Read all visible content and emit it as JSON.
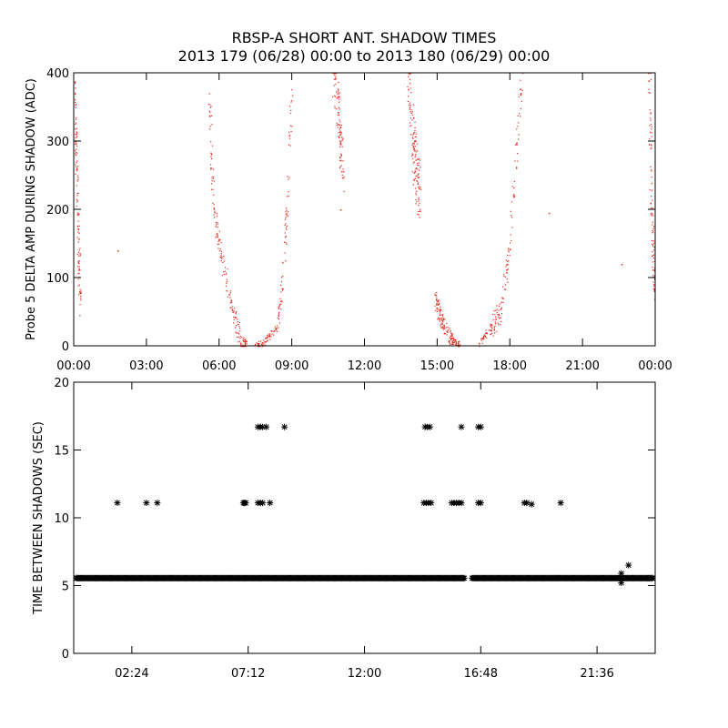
{
  "title_line1": "RBSP-A SHORT ANT. SHADOW TIMES",
  "title_line2": "2013 179 (06/28) 00:00 to 2013 180 (06/29) 00:00",
  "colors": {
    "scatter_red": "#e8281c",
    "axis": "#000000",
    "background": "#ffffff"
  },
  "chart_data": [
    {
      "type": "scatter",
      "ylabel": "Probe 5 DELTA AMP DURING SHADOW (ADC)",
      "xlabel": "",
      "xlim": [
        0,
        24
      ],
      "ylim": [
        0,
        400
      ],
      "x_ticks": [
        0,
        3,
        6,
        9,
        12,
        15,
        18,
        21,
        24
      ],
      "x_tick_labels": [
        "00:00",
        "03:00",
        "06:00",
        "09:00",
        "12:00",
        "15:00",
        "18:00",
        "21:00",
        "00:00"
      ],
      "y_ticks": [
        0,
        100,
        200,
        300,
        400
      ],
      "y_tick_labels": [
        "0",
        "100",
        "200",
        "300",
        "400"
      ],
      "grid": false,
      "marker": "dot",
      "color": "#e8281c",
      "segments": [
        {
          "x": [
            0.0,
            0.05,
            0.1,
            0.15,
            0.2,
            0.25
          ],
          "y": [
            400,
            320,
            270,
            200,
            130,
            60
          ],
          "spread": 25,
          "density": 120
        },
        {
          "x": [
            5.6,
            5.7,
            5.8,
            6.0,
            6.2,
            6.4,
            6.6,
            6.8,
            7.0,
            7.1
          ],
          "y": [
            370,
            250,
            190,
            150,
            110,
            75,
            45,
            20,
            5,
            2
          ],
          "spread": 15,
          "density": 180
        },
        {
          "x": [
            7.5,
            7.8,
            8.1,
            8.4,
            8.6,
            8.8,
            9.0
          ],
          "y": [
            1,
            5,
            15,
            30,
            100,
            200,
            400
          ],
          "spread": 12,
          "density": 140
        },
        {
          "x": [
            10.7,
            10.9,
            11.0,
            11.1
          ],
          "y": [
            400,
            350,
            300,
            250
          ],
          "spread": 35,
          "density": 100
        },
        {
          "x": [
            13.8,
            14.0,
            14.1,
            14.3
          ],
          "y": [
            400,
            300,
            260,
            220
          ],
          "spread": 45,
          "density": 140
        },
        {
          "x": [
            14.9,
            15.1,
            15.3,
            15.6,
            15.9
          ],
          "y": [
            70,
            45,
            25,
            8,
            2
          ],
          "spread": 12,
          "density": 150
        },
        {
          "x": [
            16.7,
            17.0,
            17.3,
            17.6,
            17.9,
            18.2,
            18.5
          ],
          "y": [
            3,
            15,
            30,
            50,
            120,
            250,
            400
          ],
          "spread": 18,
          "density": 160
        },
        {
          "x": [
            23.75,
            23.8,
            23.9,
            24.0
          ],
          "y": [
            400,
            250,
            130,
            80
          ],
          "spread": 20,
          "density": 90
        }
      ],
      "stray_points": [
        {
          "x": 1.8,
          "y": 140
        },
        {
          "x": 11.0,
          "y": 200
        },
        {
          "x": 19.6,
          "y": 195
        },
        {
          "x": 22.6,
          "y": 120
        }
      ]
    },
    {
      "type": "scatter",
      "ylabel": "TIME BETWEEN SHADOWS (SEC)",
      "xlabel": "",
      "xlim": [
        0,
        24
      ],
      "ylim": [
        0,
        20
      ],
      "x_ticks": [
        2.4,
        7.2,
        12.0,
        16.8,
        21.6
      ],
      "x_tick_labels": [
        "02:24",
        "07:12",
        "12:00",
        "16:48",
        "21:36"
      ],
      "y_ticks": [
        0,
        5,
        10,
        15,
        20
      ],
      "y_tick_labels": [
        "0",
        "5",
        "10",
        "15",
        "20"
      ],
      "grid": false,
      "marker": "asterisk",
      "color": "#000000",
      "baseline": {
        "value": 5.55,
        "x_start": 0.0,
        "x_end": 24.0,
        "gaps": [
          [
            16.15,
            16.4
          ]
        ]
      },
      "points": [
        {
          "x": 1.8,
          "y": 11.1
        },
        {
          "x": 3.0,
          "y": 11.1
        },
        {
          "x": 3.45,
          "y": 11.1
        },
        {
          "x": 7.0,
          "y": 11.1
        },
        {
          "x": 7.05,
          "y": 11.1
        },
        {
          "x": 7.1,
          "y": 11.1
        },
        {
          "x": 7.6,
          "y": 11.1
        },
        {
          "x": 7.7,
          "y": 11.1
        },
        {
          "x": 7.8,
          "y": 11.1
        },
        {
          "x": 8.1,
          "y": 11.1
        },
        {
          "x": 7.6,
          "y": 16.7
        },
        {
          "x": 7.7,
          "y": 16.7
        },
        {
          "x": 7.8,
          "y": 16.7
        },
        {
          "x": 7.95,
          "y": 16.7
        },
        {
          "x": 8.7,
          "y": 16.7
        },
        {
          "x": 14.45,
          "y": 11.1
        },
        {
          "x": 14.55,
          "y": 11.1
        },
        {
          "x": 14.65,
          "y": 11.1
        },
        {
          "x": 14.75,
          "y": 11.1
        },
        {
          "x": 15.6,
          "y": 11.1
        },
        {
          "x": 15.7,
          "y": 11.1
        },
        {
          "x": 15.8,
          "y": 11.1
        },
        {
          "x": 15.9,
          "y": 11.1
        },
        {
          "x": 16.0,
          "y": 11.1
        },
        {
          "x": 16.7,
          "y": 11.1
        },
        {
          "x": 16.8,
          "y": 11.1
        },
        {
          "x": 14.5,
          "y": 16.7
        },
        {
          "x": 14.6,
          "y": 16.7
        },
        {
          "x": 14.7,
          "y": 16.7
        },
        {
          "x": 16.0,
          "y": 16.7
        },
        {
          "x": 16.7,
          "y": 16.7
        },
        {
          "x": 16.8,
          "y": 16.7
        },
        {
          "x": 18.6,
          "y": 11.1
        },
        {
          "x": 18.7,
          "y": 11.1
        },
        {
          "x": 18.9,
          "y": 11.0
        },
        {
          "x": 20.1,
          "y": 11.1
        },
        {
          "x": 22.6,
          "y": 5.2
        },
        {
          "x": 22.6,
          "y": 5.9
        },
        {
          "x": 22.9,
          "y": 6.5
        }
      ]
    }
  ]
}
